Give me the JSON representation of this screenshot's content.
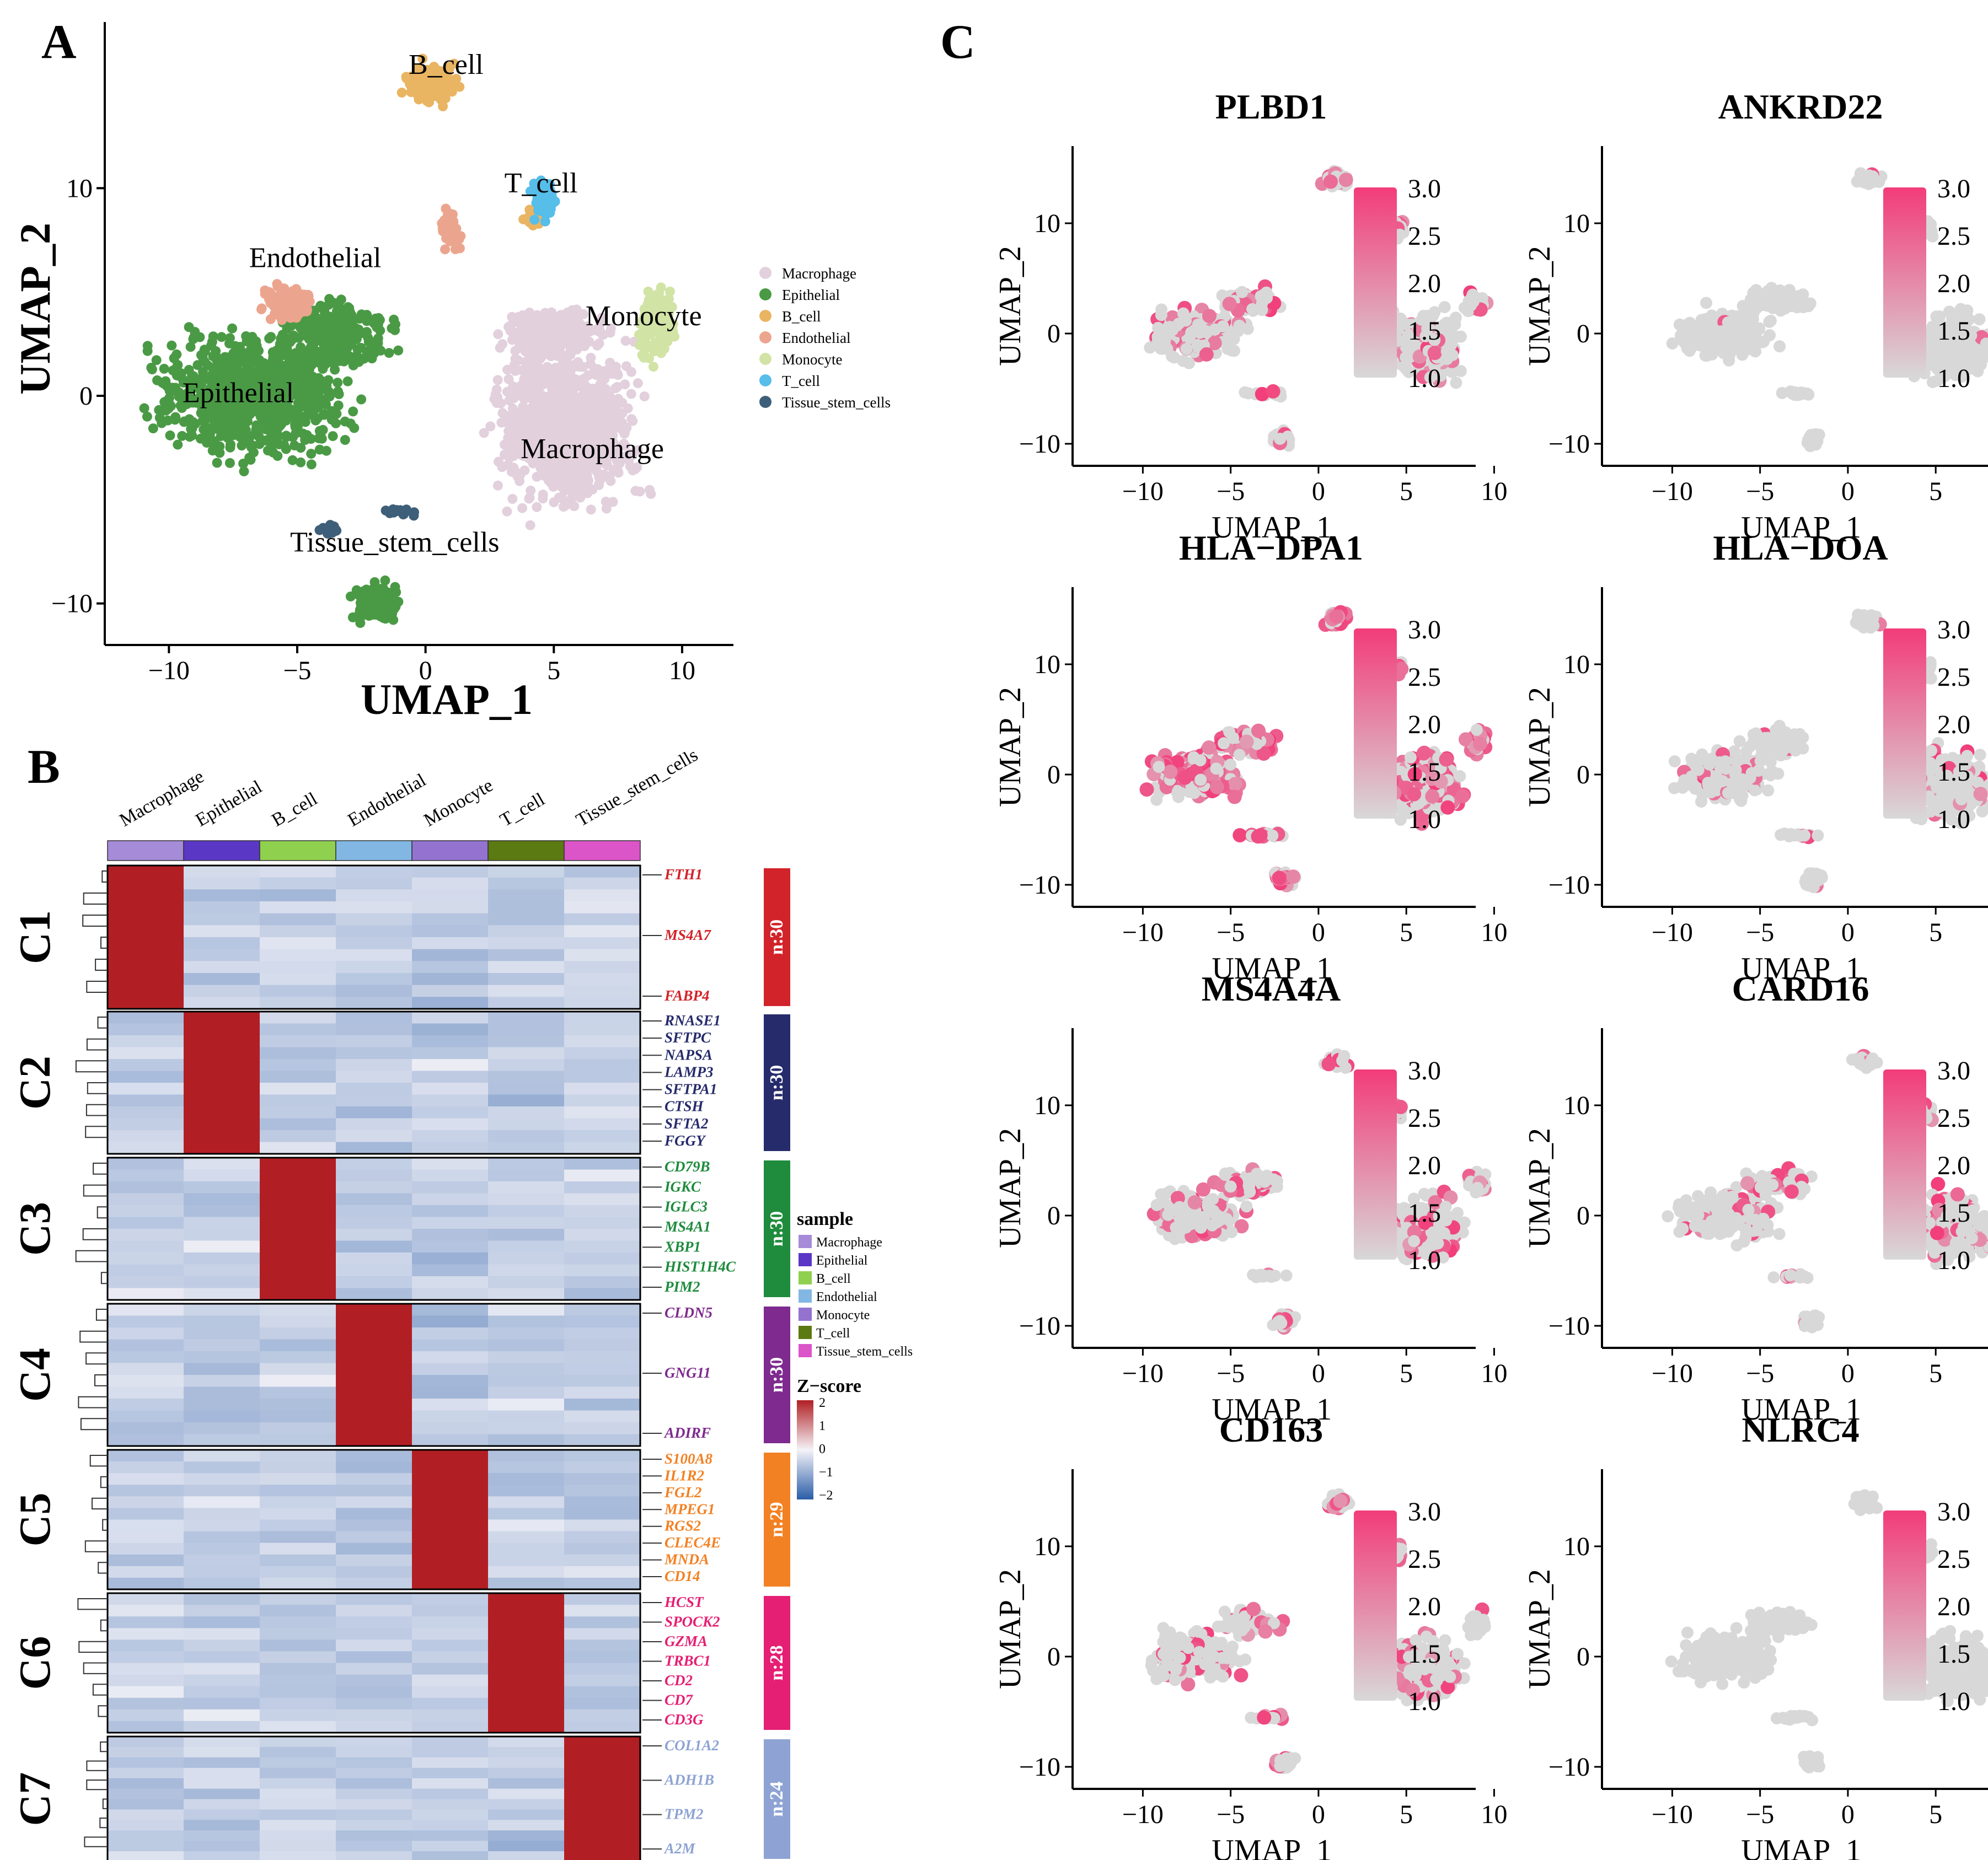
{
  "colors": {
    "Macrophage": "#e2d0dd",
    "Epithelial": "#4a9a45",
    "B_cell": "#e9b563",
    "Endothelial": "#eba58e",
    "Monocyte": "#d2e3a6",
    "T_cell": "#57bde9",
    "Tissue_stem_cells": "#3e5f79",
    "hm_high": "#b11f24",
    "hm_mid": "#f4f3f8",
    "hm_low": "#2a5da8",
    "feat_low": "#d8d8d8",
    "feat_high": "#f23c79"
  },
  "sample_colors": [
    "#a68bd8",
    "#5b37c6",
    "#8fd14f",
    "#82b7e3",
    "#9373cf",
    "#5b7a12",
    "#db55c9"
  ],
  "panels": {
    "a": "A",
    "b": "B",
    "c": "C"
  },
  "panel_a": {
    "xlabel": "UMAP_1",
    "ylabel": "UMAP_2",
    "xticks": [
      "−10",
      "−5",
      "0",
      "5",
      "10"
    ],
    "yticks": [
      "10",
      "0",
      "−10"
    ],
    "cluster_labels": [
      "B_cell",
      "T_cell",
      "Endothelial",
      "Monocyte",
      "Epithelial",
      "Macrophage",
      "Tissue_stem_cells"
    ],
    "legend": [
      "Macrophage",
      "Epithelial",
      "B_cell",
      "Endothelial",
      "Monocyte",
      "T_cell",
      "Tissue_stem_cells"
    ]
  },
  "panel_b": {
    "columns": [
      "Macrophage",
      "Epithelial",
      "B_cell",
      "Endothelial",
      "Monocyte",
      "T_cell",
      "Tissue_stem_cells"
    ],
    "clusters": [
      {
        "name": "C1",
        "n": "n:30",
        "color": "#d2232a",
        "genes": [
          "FTH1",
          "MS4A7",
          "FABP4"
        ]
      },
      {
        "name": "C2",
        "n": "n:30",
        "color": "#262b6b",
        "genes": [
          "RNASE1",
          "SFTPC",
          "NAPSA",
          "LAMP3",
          "SFTPA1",
          "CTSH",
          "SFTA2",
          "FGGY"
        ]
      },
      {
        "name": "C3",
        "n": "n:30",
        "color": "#1f8b3d",
        "genes": [
          "CD79B",
          "IGKC",
          "IGLC3",
          "MS4A1",
          "XBP1",
          "HIST1H4C",
          "PIM2"
        ]
      },
      {
        "name": "C4",
        "n": "n:30",
        "color": "#7e2a8e",
        "genes": [
          "CLDN5",
          "GNG11",
          "ADIRF"
        ]
      },
      {
        "name": "C5",
        "n": "n:29",
        "color": "#f28123",
        "genes": [
          "S100A8",
          "IL1R2",
          "FGL2",
          "MPEG1",
          "RGS2",
          "CLEC4E",
          "MNDA",
          "CD14"
        ]
      },
      {
        "name": "C6",
        "n": "n:28",
        "color": "#e51f73",
        "genes": [
          "HCST",
          "SPOCK2",
          "GZMA",
          "TRBC1",
          "CD2",
          "CD7",
          "CD3G"
        ]
      },
      {
        "name": "C7",
        "n": "n:24",
        "color": "#8ea3d4",
        "genes": [
          "COL1A2",
          "ADH1B",
          "TPM2",
          "A2M"
        ]
      }
    ],
    "legend_title": "sample",
    "zscore_title": "Z−score",
    "zscore_ticks": [
      "2",
      "1",
      "0",
      "−1",
      "−2"
    ]
  },
  "panel_c": {
    "xlabel": "UMAP_1",
    "ylabel": "UMAP_2",
    "xticks": [
      "−10",
      "−5",
      "0",
      "5",
      "10"
    ],
    "yticks": [
      "10",
      "0",
      "−10"
    ],
    "color_ticks": [
      "3.0",
      "2.5",
      "2.0",
      "1.5",
      "1.0"
    ],
    "genes": [
      {
        "name": "PLBD1",
        "expr": 0.35
      },
      {
        "name": "ANKRD22",
        "expr": 0.02
      },
      {
        "name": "HLA−DPA1",
        "expr": 1.0
      },
      {
        "name": "HLA−DOA",
        "expr": 0.18
      },
      {
        "name": "MS4A4A",
        "expr": 0.3
      },
      {
        "name": "CARD16",
        "expr": 0.25
      },
      {
        "name": "CD163",
        "expr": 0.28
      },
      {
        "name": "NLRC4",
        "expr": 0.01
      }
    ]
  }
}
